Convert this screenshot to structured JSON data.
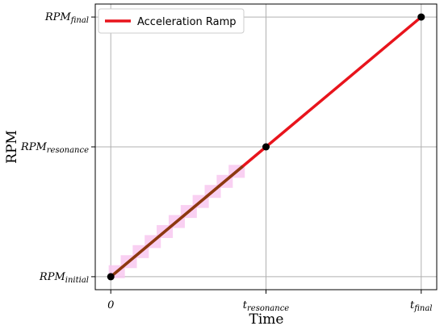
{
  "chart_data": {
    "type": "line",
    "xlabel": "Time",
    "ylabel": "RPM",
    "xlim": [
      -0.1,
      2.1
    ],
    "ylim": [
      -0.05,
      1.05
    ],
    "grid": true,
    "x_ticks": [
      {
        "value": 0,
        "base": "0",
        "sub": ""
      },
      {
        "value": 1,
        "base": "t",
        "sub": "resonance"
      },
      {
        "value": 2,
        "base": "t",
        "sub": "final"
      }
    ],
    "y_ticks": [
      {
        "value": 0,
        "base": "RPM",
        "sub": "initial"
      },
      {
        "value": 0.5,
        "base": "RPM",
        "sub": "resonance"
      },
      {
        "value": 1,
        "base": "RPM",
        "sub": "final"
      }
    ],
    "legend": {
      "placement": "top-left"
    },
    "series": [
      {
        "name": "Acceleration Ramp",
        "color": "#e8141c",
        "x": [
          0,
          2
        ],
        "y": [
          0,
          1
        ]
      }
    ],
    "highlight": {
      "x": [
        0,
        0.85
      ],
      "y": [
        0,
        0.425
      ],
      "color": "#8b3a10",
      "band_color": "#f8c8f0"
    },
    "points": {
      "x": [
        0,
        1,
        2
      ],
      "y": [
        0,
        0.5,
        1
      ],
      "color": "#000000"
    }
  }
}
